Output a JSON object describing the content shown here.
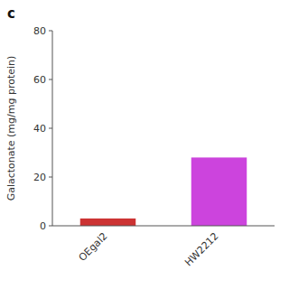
{
  "chart_data": {
    "type": "bar",
    "title": "c",
    "categories": [
      "OEgal2",
      "HW2212"
    ],
    "values": [
      3.0,
      28.0
    ],
    "colors": [
      "#cc3333",
      "#cc44dd"
    ],
    "ylabel": "Galactonate (mg/mg protein)",
    "ylim": [
      0,
      80
    ],
    "yticks": [
      0,
      20,
      40,
      60,
      80
    ],
    "grid": false
  }
}
